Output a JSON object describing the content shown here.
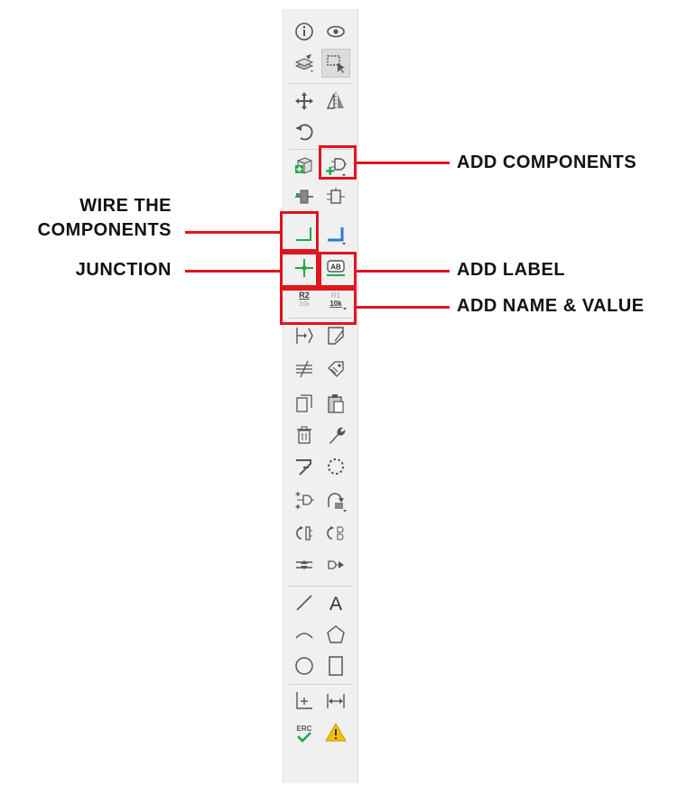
{
  "toolbar": {
    "items": [
      {
        "name": "info-icon"
      },
      {
        "name": "eye-icon"
      },
      {
        "name": "layers-icon"
      },
      {
        "name": "select-icon"
      },
      {
        "name": "move-icon"
      },
      {
        "name": "mirror-icon"
      },
      {
        "name": "rotate-icon"
      },
      {
        "name": "add-package-icon"
      },
      {
        "name": "add-components-icon"
      },
      {
        "name": "add-power-icon"
      },
      {
        "name": "add-symbol-icon"
      },
      {
        "name": "wire-icon"
      },
      {
        "name": "bus-icon"
      },
      {
        "name": "junction-icon"
      },
      {
        "name": "add-label-icon"
      },
      {
        "name": "name-icon"
      },
      {
        "name": "value-icon"
      },
      {
        "name": "hierarchical-label-icon"
      },
      {
        "name": "sheet-icon"
      },
      {
        "name": "no-connect-icon"
      },
      {
        "name": "tag-icon"
      },
      {
        "name": "copy-icon"
      },
      {
        "name": "paste-icon"
      },
      {
        "name": "delete-icon"
      },
      {
        "name": "wrench-icon"
      },
      {
        "name": "join-icon"
      },
      {
        "name": "group-icon"
      },
      {
        "name": "add-pin-icon"
      },
      {
        "name": "replace-icon"
      },
      {
        "name": "swap-gate-icon"
      },
      {
        "name": "swap-pin-icon"
      },
      {
        "name": "split-icon"
      },
      {
        "name": "invert-icon"
      },
      {
        "name": "line-icon"
      },
      {
        "name": "text-icon"
      },
      {
        "name": "arc-icon"
      },
      {
        "name": "polygon-icon"
      },
      {
        "name": "circle-icon"
      },
      {
        "name": "rectangle-icon"
      },
      {
        "name": "dimension-icon"
      },
      {
        "name": "measure-icon"
      },
      {
        "name": "erc-icon"
      },
      {
        "name": "warning-icon"
      }
    ],
    "glyphs": {
      "label_ab": "AB",
      "name_r2": "R2",
      "name_sub": "10k",
      "value_r1": "R1",
      "value_10k": "10k",
      "text_a": "A",
      "erc": "ERC"
    }
  },
  "callouts": {
    "add_components": "ADD COMPONENTS",
    "wire_line1": "WIRE THE",
    "wire_line2": "COMPONENTS",
    "junction": "JUNCTION",
    "add_label": "ADD LABEL",
    "add_name_value": "ADD NAME & VALUE"
  },
  "colors": {
    "highlight": "#e0141e",
    "green": "#22a84a",
    "blue": "#2a7bd6",
    "warning": "#f2c200",
    "icon": "#5a5a5a"
  }
}
